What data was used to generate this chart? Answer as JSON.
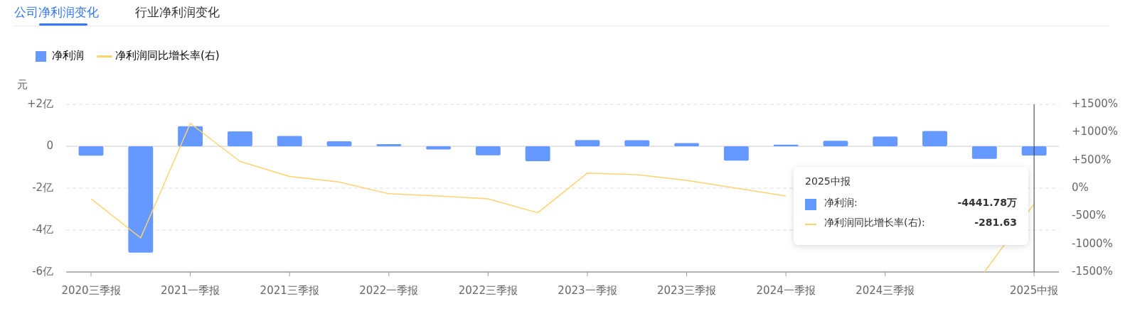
{
  "chart_data": {
    "type": "bar",
    "title": "公司净利润变化",
    "ylabel": "元",
    "categories": [
      "2020三季报",
      null,
      "2021一季报",
      null,
      "2021三季报",
      null,
      "2022一季报",
      null,
      "2022三季报",
      null,
      "2023一季报",
      null,
      "2023三季报",
      null,
      "2024一季报",
      null,
      "2024三季报",
      null,
      null,
      "2025中报"
    ],
    "series": [
      {
        "name": "净利润",
        "color": "#6699ff",
        "values": [
          -0.45,
          -5.08,
          0.96,
          0.71,
          0.49,
          0.24,
          0.1,
          -0.15,
          -0.43,
          -0.71,
          0.3,
          0.29,
          0.15,
          -0.69,
          0.08,
          0.26,
          0.47,
          0.73,
          -0.6,
          -0.444
        ]
      },
      {
        "name": "净利润同比增长率(右)",
        "type": "line",
        "axis": "y2",
        "color": "#fdd36f",
        "values": [
          -190,
          -890,
          1160,
          480,
          210,
          110,
          -100,
          -140,
          -190,
          -440,
          270,
          240,
          140,
          0,
          -140,
          null,
          null,
          null,
          -1500,
          -281.63
        ]
      }
    ],
    "ylim": [
      -6,
      2
    ],
    "yticks": [
      {
        "value": -6,
        "label": "-6亿"
      },
      {
        "value": -4,
        "label": "-4亿"
      },
      {
        "value": -2,
        "label": "-2亿"
      },
      0,
      {
        "value": 2,
        "label": "+2亿"
      }
    ],
    "y2lim": [
      -1500,
      1500
    ],
    "y2ticks": [
      {
        "value": -1500,
        "label": "-1500%"
      },
      {
        "value": -1000,
        "label": "-1000%"
      },
      {
        "value": -500,
        "label": "-500%"
      },
      {
        "value": 0,
        "label": "0%"
      },
      {
        "value": 500,
        "label": "+500%"
      },
      {
        "value": 1000,
        "label": "+1000%"
      },
      {
        "value": 1500,
        "label": "+1500%"
      }
    ],
    "grid": "y",
    "legend": "top left",
    "marker": "none",
    "line_style": "solid",
    "ref_lines": [
      {
        "axis": "x",
        "value": "2025中报",
        "color": "#333333"
      }
    ],
    "annotations": [
      "行业净利润变化",
      "2025中报",
      "净利润:",
      "-4441.78万",
      "净利润同比增长率(右):",
      "-281.63"
    ]
  }
}
